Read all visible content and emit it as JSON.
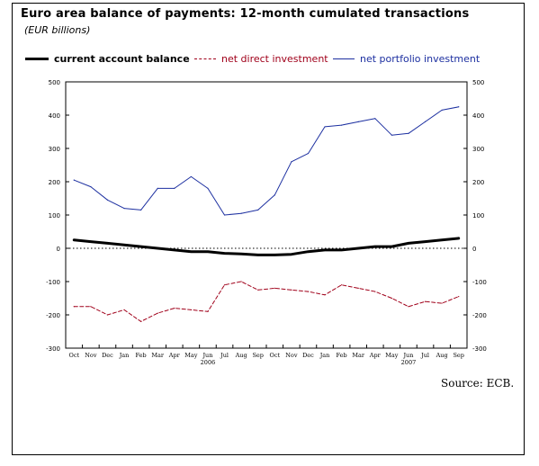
{
  "title": "Euro area balance of payments: 12-month cumulated transactions",
  "subtitle": "(EUR billions)",
  "source": "Source: ECB.",
  "chart_data": {
    "type": "line",
    "categories": [
      "Oct",
      "Nov",
      "Dec",
      "Jan",
      "Feb",
      "Mar",
      "Apr",
      "May",
      "Jun",
      "Jul",
      "Aug",
      "Sep",
      "Oct",
      "Nov",
      "Dec",
      "Jan",
      "Feb",
      "Mar",
      "Apr",
      "May",
      "Jun",
      "Jul",
      "Aug",
      "Sep"
    ],
    "year_labels": [
      {
        "label": "2006",
        "index": 8
      },
      {
        "label": "2007",
        "index": 20
      }
    ],
    "ylim": [
      -300,
      500
    ],
    "yticks": [
      -300,
      -200,
      -100,
      0,
      100,
      200,
      300,
      400,
      500
    ],
    "series": [
      {
        "name": "current account balance",
        "color": "#000000",
        "style": "solid-thick",
        "values": [
          25,
          20,
          15,
          10,
          5,
          0,
          -5,
          -10,
          -10,
          -15,
          -17,
          -20,
          -20,
          -18,
          -10,
          -5,
          -5,
          0,
          5,
          5,
          15,
          20,
          25,
          30
        ]
      },
      {
        "name": "net direct investment",
        "color": "#a0001a",
        "style": "dashed",
        "values": [
          -175,
          -175,
          -200,
          -185,
          -220,
          -195,
          -180,
          -185,
          -190,
          -110,
          -100,
          -125,
          -120,
          -125,
          -130,
          -140,
          -110,
          -120,
          -130,
          -150,
          -175,
          -160,
          -165,
          -145
        ]
      },
      {
        "name": "net portfolio investment",
        "color": "#1c2fa0",
        "style": "solid",
        "values": [
          205,
          185,
          145,
          120,
          115,
          180,
          180,
          215,
          180,
          100,
          105,
          115,
          160,
          260,
          285,
          365,
          370,
          380,
          390,
          340,
          345,
          380,
          415,
          425
        ]
      }
    ],
    "zero_line": "dotted",
    "grid": false,
    "legend_position": "top"
  }
}
